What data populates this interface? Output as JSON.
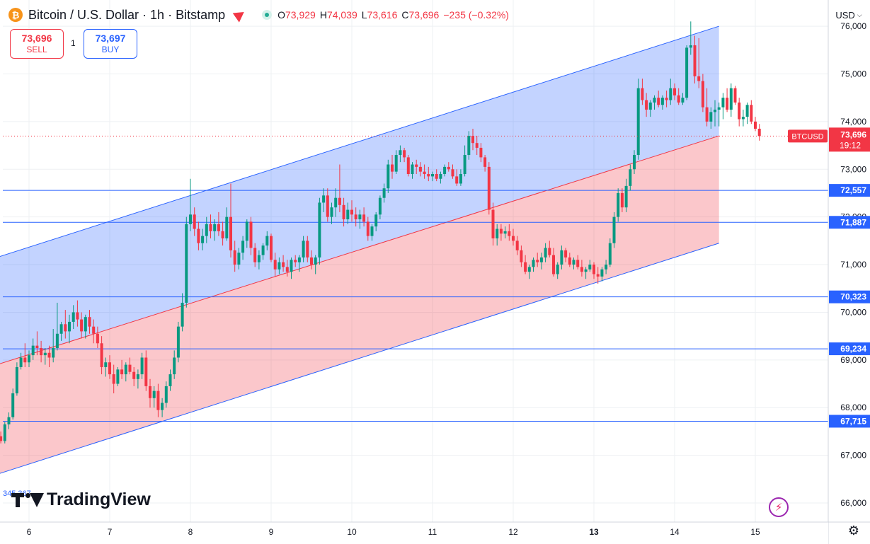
{
  "header": {
    "coin_glyph": "₿",
    "title": "Bitcoin / U.S. Dollar · 1h · Bitstamp",
    "ohlc": {
      "o_label": "O",
      "o": "73,929",
      "h_label": "H",
      "h": "74,039",
      "l_label": "L",
      "l": "73,616",
      "c_label": "C",
      "c": "73,696",
      "change": "−235 (−0.32%)"
    }
  },
  "trade": {
    "sell_price": "73,696",
    "sell_label": "SELL",
    "buy_price": "73,697",
    "buy_label": "BUY",
    "spread": "1"
  },
  "currency": {
    "label": "USD",
    "chevron": "⌵"
  },
  "watermark": {
    "text": "TradingView",
    "clipped_text": "345.367"
  },
  "icons": {
    "settings": "gear-icon",
    "magic": "sparkle-icon",
    "gear_glyph": "⚙",
    "magic_glyph": "⚡"
  },
  "colors": {
    "up": "#089981",
    "down": "#f23645",
    "channel_blue": "#2962ff",
    "channel_red": "#f23645",
    "hline": "#2962ff",
    "grid": "#eef0f3",
    "price_label": "#f23645"
  },
  "chart_data": {
    "type": "candlestick",
    "symbol": "BTCUSD",
    "timeframe": "1h",
    "x_ticks": [
      "6",
      "7",
      "8",
      "9",
      "10",
      "11",
      "12",
      "13",
      "14",
      "15"
    ],
    "y_ticks": [
      "66,000",
      "67,000",
      "68,000",
      "69,000",
      "70,000",
      "71,000",
      "72,000",
      "73,000",
      "74,000",
      "75,000",
      "76,000"
    ],
    "ylim": [
      65600,
      76550
    ],
    "grid": true,
    "last_price": {
      "label": "BTCUSD",
      "value": "73,696",
      "countdown": "19:12",
      "y": 73696
    },
    "horizontal_levels": [
      {
        "label": "72,557",
        "value": 72557
      },
      {
        "label": "71,887",
        "value": 71887
      },
      {
        "label": "70,323",
        "value": 70323
      },
      {
        "label": "69,234",
        "value": 69234
      },
      {
        "label": "67,715",
        "value": 67715
      }
    ],
    "channel": {
      "start_day": 5.6,
      "end_day": 14.55,
      "upper": [
        71150,
        76000
      ],
      "middle": [
        68900,
        73700
      ],
      "lower": [
        66600,
        71450
      ]
    },
    "candles": [
      [
        5.6,
        67300,
        67550,
        67150,
        67400
      ],
      [
        5.65,
        67400,
        67500,
        67250,
        67300
      ],
      [
        5.7,
        67300,
        67700,
        67250,
        67650
      ],
      [
        5.75,
        67650,
        67900,
        67550,
        67800
      ],
      [
        5.8,
        67800,
        68400,
        67750,
        68300
      ],
      [
        5.85,
        68300,
        68950,
        68250,
        68850
      ],
      [
        5.9,
        68850,
        69150,
        68800,
        69050
      ],
      [
        5.95,
        69050,
        69350,
        68850,
        68950
      ],
      [
        6.0,
        68950,
        69200,
        68850,
        69100
      ],
      [
        6.05,
        69100,
        69450,
        69000,
        69300
      ],
      [
        6.1,
        69300,
        69600,
        69100,
        69250
      ],
      [
        6.15,
        69250,
        69400,
        68950,
        69100
      ],
      [
        6.2,
        69100,
        69250,
        68900,
        69150
      ],
      [
        6.25,
        69150,
        69300,
        68850,
        69050
      ],
      [
        6.3,
        69050,
        69650,
        68950,
        69250
      ],
      [
        6.35,
        69250,
        70200,
        69200,
        69550
      ],
      [
        6.4,
        69550,
        69800,
        69400,
        69750
      ],
      [
        6.45,
        69750,
        70050,
        69450,
        69600
      ],
      [
        6.5,
        69600,
        69950,
        69350,
        69800
      ],
      [
        6.55,
        69800,
        70150,
        69650,
        70000
      ],
      [
        6.6,
        70000,
        70250,
        69700,
        69850
      ],
      [
        6.65,
        69850,
        70000,
        69450,
        69600
      ],
      [
        6.7,
        69600,
        69950,
        69450,
        69900
      ],
      [
        6.75,
        69900,
        70050,
        69550,
        69700
      ],
      [
        6.8,
        69700,
        69850,
        69350,
        69550
      ],
      [
        6.85,
        69550,
        69700,
        69250,
        69350
      ],
      [
        6.9,
        69350,
        69500,
        68700,
        68850
      ],
      [
        6.95,
        68850,
        69050,
        68650,
        68950
      ],
      [
        7.0,
        68950,
        69100,
        68600,
        68700
      ],
      [
        7.05,
        68700,
        68900,
        68300,
        68500
      ],
      [
        7.1,
        68500,
        68850,
        68450,
        68800
      ],
      [
        7.15,
        68800,
        69000,
        68600,
        68700
      ],
      [
        7.2,
        68700,
        68950,
        68550,
        68900
      ],
      [
        7.25,
        68900,
        69050,
        68700,
        68750
      ],
      [
        7.3,
        68750,
        68850,
        68450,
        68600
      ],
      [
        7.35,
        68600,
        68800,
        68400,
        68700
      ],
      [
        7.4,
        68700,
        69150,
        68600,
        69050
      ],
      [
        7.45,
        69050,
        69200,
        68350,
        68450
      ],
      [
        7.5,
        68450,
        68600,
        68000,
        68200
      ],
      [
        7.55,
        68200,
        68450,
        68000,
        68350
      ],
      [
        7.6,
        68350,
        68500,
        67800,
        67950
      ],
      [
        7.65,
        67950,
        68200,
        67800,
        68100
      ],
      [
        7.7,
        68100,
        68550,
        68000,
        68450
      ],
      [
        7.75,
        68450,
        68800,
        68350,
        68700
      ],
      [
        7.8,
        68700,
        69200,
        68600,
        69050
      ],
      [
        7.85,
        69050,
        69800,
        68950,
        69700
      ],
      [
        7.9,
        69700,
        70400,
        69600,
        70200
      ],
      [
        7.95,
        70200,
        72000,
        70100,
        71850
      ],
      [
        8.0,
        71850,
        72800,
        71700,
        72050
      ],
      [
        8.05,
        72050,
        72200,
        71600,
        71750
      ],
      [
        8.1,
        71750,
        71900,
        71300,
        71450
      ],
      [
        8.15,
        71450,
        71750,
        71300,
        71600
      ],
      [
        8.2,
        71600,
        72000,
        71450,
        71850
      ],
      [
        8.25,
        71850,
        72050,
        71550,
        71700
      ],
      [
        8.3,
        71700,
        71950,
        71500,
        71850
      ],
      [
        8.35,
        71850,
        72100,
        71600,
        71700
      ],
      [
        8.4,
        71700,
        71900,
        71400,
        71550
      ],
      [
        8.45,
        71550,
        72200,
        71500,
        72000
      ],
      [
        8.5,
        72000,
        72700,
        71150,
        71300
      ],
      [
        8.55,
        71300,
        71500,
        70850,
        71000
      ],
      [
        8.6,
        71000,
        71350,
        70900,
        71250
      ],
      [
        8.65,
        71250,
        71600,
        71100,
        71500
      ],
      [
        8.7,
        71500,
        71950,
        71350,
        71900
      ],
      [
        8.75,
        71900,
        72000,
        71200,
        71350
      ],
      [
        8.8,
        71350,
        71450,
        70950,
        71050
      ],
      [
        8.85,
        71050,
        71300,
        70900,
        71200
      ],
      [
        8.9,
        71200,
        71450,
        71100,
        71400
      ],
      [
        8.95,
        71400,
        71700,
        71300,
        71600
      ],
      [
        9.0,
        71600,
        71650,
        71050,
        71100
      ],
      [
        9.05,
        71100,
        71250,
        70750,
        70900
      ],
      [
        9.1,
        70900,
        71150,
        70800,
        71050
      ],
      [
        9.15,
        71050,
        71200,
        70850,
        70950
      ],
      [
        9.2,
        70950,
        71100,
        70750,
        70850
      ],
      [
        9.25,
        70850,
        71150,
        70700,
        71100
      ],
      [
        9.3,
        71100,
        71200,
        70950,
        71050
      ],
      [
        9.35,
        71050,
        71200,
        70850,
        71150
      ],
      [
        9.4,
        71150,
        71600,
        71050,
        71500
      ],
      [
        9.45,
        71500,
        71600,
        71050,
        71150
      ],
      [
        9.5,
        71150,
        71300,
        70900,
        71000
      ],
      [
        9.55,
        71000,
        71200,
        70800,
        71150
      ],
      [
        9.6,
        71150,
        72400,
        71000,
        72300
      ],
      [
        9.65,
        72300,
        72600,
        72100,
        72450
      ],
      [
        9.7,
        72450,
        72600,
        71900,
        72000
      ],
      [
        9.75,
        72000,
        72300,
        71850,
        72200
      ],
      [
        9.8,
        72200,
        72600,
        72000,
        72400
      ],
      [
        9.85,
        72400,
        73100,
        72100,
        72250
      ],
      [
        9.9,
        72250,
        72400,
        71800,
        71950
      ],
      [
        9.95,
        71950,
        72300,
        71850,
        72150
      ],
      [
        10.0,
        72150,
        72350,
        71900,
        72050
      ],
      [
        10.05,
        72050,
        72200,
        71800,
        71950
      ],
      [
        10.1,
        71950,
        72150,
        71750,
        72050
      ],
      [
        10.15,
        72050,
        72200,
        71800,
        71900
      ],
      [
        10.2,
        71900,
        72000,
        71500,
        71600
      ],
      [
        10.25,
        71600,
        71850,
        71500,
        71800
      ],
      [
        10.3,
        71800,
        72100,
        71700,
        72050
      ],
      [
        10.35,
        72050,
        72450,
        71950,
        72400
      ],
      [
        10.4,
        72400,
        72700,
        72300,
        72600
      ],
      [
        10.45,
        72600,
        73200,
        72500,
        73100
      ],
      [
        10.5,
        73100,
        73300,
        72800,
        72950
      ],
      [
        10.55,
        72950,
        73400,
        72900,
        73300
      ],
      [
        10.6,
        73300,
        73500,
        73150,
        73400
      ],
      [
        10.65,
        73400,
        73450,
        73150,
        73250
      ],
      [
        10.7,
        73250,
        73300,
        72850,
        72900
      ],
      [
        10.75,
        72900,
        73150,
        72800,
        73100
      ],
      [
        10.8,
        73100,
        73200,
        72900,
        73050
      ],
      [
        10.85,
        73050,
        73150,
        72850,
        72950
      ],
      [
        10.9,
        72950,
        73100,
        72800,
        72900
      ],
      [
        10.95,
        72900,
        73050,
        72750,
        72850
      ],
      [
        11.0,
        72850,
        72950,
        72750,
        72900
      ],
      [
        11.05,
        72900,
        73000,
        72750,
        72800
      ],
      [
        11.1,
        72800,
        72950,
        72700,
        72900
      ],
      [
        11.15,
        72900,
        73100,
        72850,
        73050
      ],
      [
        11.2,
        73050,
        73150,
        72950,
        73000
      ],
      [
        11.25,
        73000,
        73100,
        72800,
        72850
      ],
      [
        11.3,
        72850,
        73000,
        72650,
        72700
      ],
      [
        11.35,
        72700,
        73000,
        72650,
        72900
      ],
      [
        11.4,
        72900,
        73500,
        72850,
        73300
      ],
      [
        11.45,
        73300,
        73800,
        73200,
        73700
      ],
      [
        11.5,
        73700,
        73850,
        73400,
        73550
      ],
      [
        11.55,
        73550,
        73700,
        73300,
        73450
      ],
      [
        11.6,
        73450,
        73550,
        73150,
        73250
      ],
      [
        11.65,
        73250,
        73300,
        72950,
        73050
      ],
      [
        11.7,
        73050,
        73150,
        72050,
        72150
      ],
      [
        11.75,
        72150,
        72300,
        71400,
        71550
      ],
      [
        11.8,
        71550,
        71850,
        71400,
        71750
      ],
      [
        11.85,
        71750,
        71850,
        71500,
        71650
      ],
      [
        11.9,
        71650,
        71800,
        71550,
        71700
      ],
      [
        11.95,
        71700,
        71850,
        71500,
        71600
      ],
      [
        12.0,
        71600,
        71750,
        71400,
        71500
      ],
      [
        12.05,
        71500,
        71600,
        71200,
        71300
      ],
      [
        12.1,
        71300,
        71400,
        70950,
        71050
      ],
      [
        12.15,
        71050,
        71200,
        70800,
        70850
      ],
      [
        12.2,
        70850,
        71000,
        70700,
        70950
      ],
      [
        12.25,
        70950,
        71150,
        70850,
        71100
      ],
      [
        12.3,
        71100,
        71250,
        70950,
        71050
      ],
      [
        12.35,
        71050,
        71250,
        70900,
        71150
      ],
      [
        12.4,
        71150,
        71450,
        71050,
        71350
      ],
      [
        12.45,
        71350,
        71500,
        71150,
        71200
      ],
      [
        12.5,
        71200,
        71350,
        70750,
        70800
      ],
      [
        12.55,
        70800,
        71050,
        70700,
        71000
      ],
      [
        12.6,
        71000,
        71400,
        70900,
        71300
      ],
      [
        12.65,
        71300,
        71350,
        71050,
        71150
      ],
      [
        12.7,
        71150,
        71250,
        70950,
        71000
      ],
      [
        12.75,
        71000,
        71150,
        70900,
        71100
      ],
      [
        12.8,
        71100,
        71200,
        70900,
        70950
      ],
      [
        12.85,
        70950,
        71100,
        70750,
        70850
      ],
      [
        12.9,
        70850,
        70950,
        70700,
        70900
      ],
      [
        12.95,
        70900,
        71100,
        70850,
        71000
      ],
      [
        13.0,
        71000,
        71050,
        70700,
        70800
      ],
      [
        13.05,
        70800,
        70950,
        70600,
        70750
      ],
      [
        13.1,
        70750,
        70950,
        70650,
        70900
      ],
      [
        13.15,
        70900,
        71100,
        70800,
        71000
      ],
      [
        13.2,
        71000,
        71550,
        70950,
        71450
      ],
      [
        13.25,
        71450,
        72100,
        71350,
        72000
      ],
      [
        13.3,
        72000,
        72600,
        71900,
        72500
      ],
      [
        13.35,
        72500,
        72600,
        72100,
        72200
      ],
      [
        13.4,
        72200,
        72800,
        72100,
        72650
      ],
      [
        13.45,
        72650,
        73100,
        72550,
        73000
      ],
      [
        13.5,
        73000,
        73400,
        72900,
        73300
      ],
      [
        13.55,
        73300,
        74900,
        73200,
        74700
      ],
      [
        13.6,
        74700,
        74900,
        74350,
        74450
      ],
      [
        13.65,
        74450,
        74600,
        74100,
        74250
      ],
      [
        13.7,
        74250,
        74450,
        74100,
        74400
      ],
      [
        13.75,
        74400,
        74550,
        74250,
        74500
      ],
      [
        13.8,
        74500,
        74650,
        74300,
        74350
      ],
      [
        13.85,
        74350,
        74550,
        74250,
        74500
      ],
      [
        13.9,
        74500,
        74650,
        74300,
        74450
      ],
      [
        13.95,
        74450,
        74900,
        74350,
        74700
      ],
      [
        14.0,
        74700,
        74800,
        74450,
        74550
      ],
      [
        14.05,
        74550,
        74700,
        74350,
        74400
      ],
      [
        14.1,
        74400,
        74600,
        74350,
        74500
      ],
      [
        14.15,
        74500,
        75600,
        74450,
        75550
      ],
      [
        14.2,
        75550,
        76100,
        75400,
        75600
      ],
      [
        14.25,
        75600,
        75800,
        74800,
        74950
      ],
      [
        14.3,
        74950,
        75750,
        74700,
        74850
      ],
      [
        14.35,
        74850,
        75000,
        74200,
        74300
      ],
      [
        14.4,
        74300,
        74700,
        73900,
        74000
      ],
      [
        14.45,
        74000,
        74300,
        73850,
        74200
      ],
      [
        14.5,
        74200,
        74450,
        73900,
        74250
      ],
      [
        14.55,
        74250,
        74400,
        73900,
        74300
      ],
      [
        14.6,
        74300,
        74600,
        74050,
        74500
      ],
      [
        14.65,
        74500,
        74700,
        74200,
        74250
      ],
      [
        14.7,
        74250,
        74800,
        74100,
        74700
      ],
      [
        14.75,
        74700,
        74750,
        74350,
        74400
      ],
      [
        14.8,
        74400,
        74500,
        73900,
        74050
      ],
      [
        14.85,
        74050,
        74250,
        73900,
        74100
      ],
      [
        14.9,
        74100,
        74400,
        73950,
        74350
      ],
      [
        14.95,
        74350,
        74450,
        73950,
        74000
      ],
      [
        15.0,
        74000,
        74100,
        73800,
        73850
      ],
      [
        15.05,
        73850,
        73950,
        73600,
        73696
      ]
    ]
  }
}
